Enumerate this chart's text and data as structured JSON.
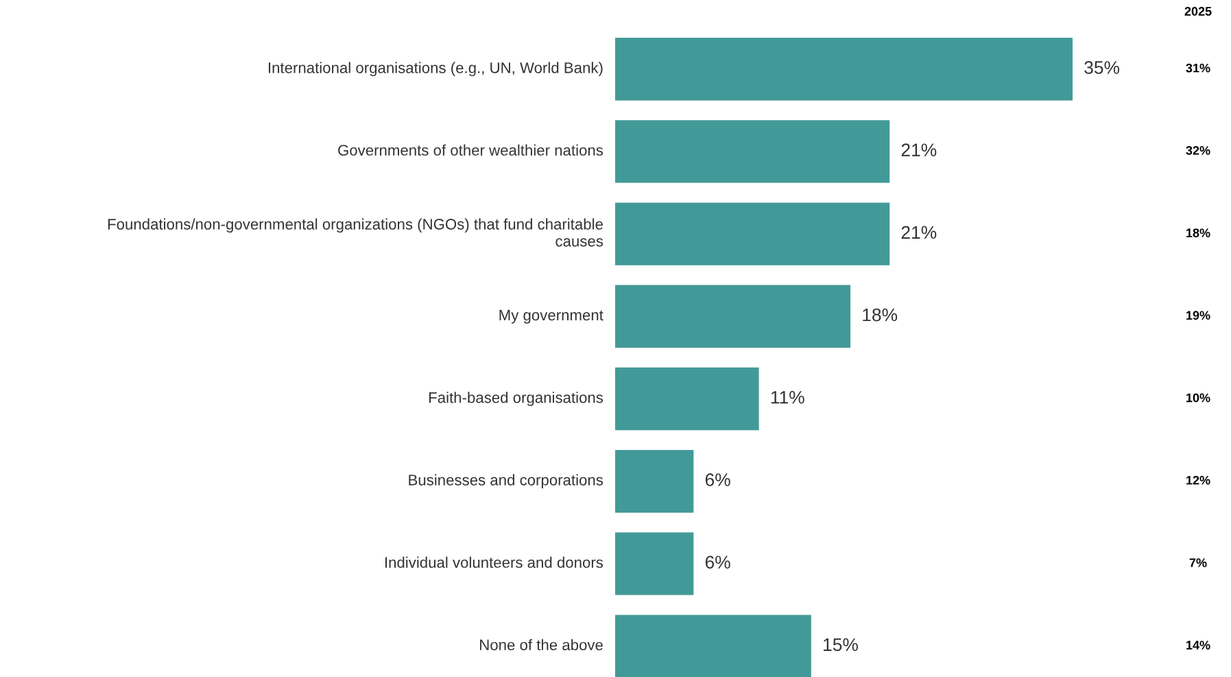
{
  "chart_data": {
    "type": "bar",
    "orientation": "horizontal",
    "categories": [
      "International organisations (e.g., UN, World Bank)",
      "Governments of other wealthier nations",
      "Foundations/non-governmental organizations (NGOs) that fund charitable\ncauses",
      "My government",
      "Faith-based organisations",
      "Businesses and corporations",
      "Individual volunteers and donors",
      "None of the above"
    ],
    "values": [
      35,
      21,
      21,
      18,
      11,
      6,
      6,
      15
    ],
    "color": "#429a98",
    "value_labels": [
      "35%",
      "21%",
      "21%",
      "18%",
      "11%",
      "6%",
      "6%",
      "15%"
    ],
    "annotations": [
      "2025",
      "31%",
      "32%",
      "18%",
      "19%",
      "10%",
      "12%",
      "7%",
      "14%"
    ]
  }
}
